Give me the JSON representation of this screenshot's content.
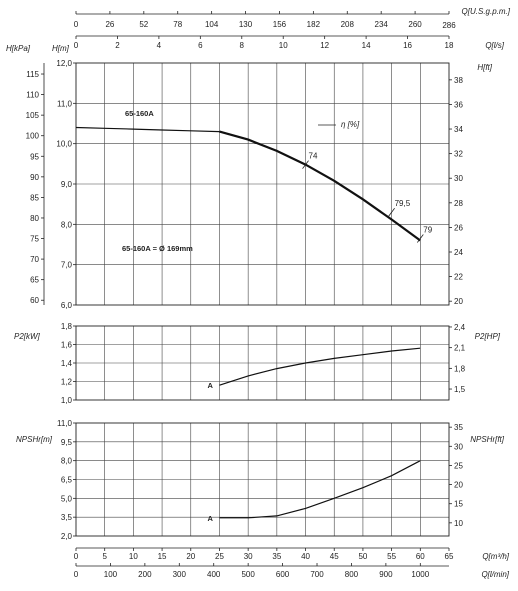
{
  "chart_data": {
    "type": "line",
    "model": "65-160A",
    "impeller_label": "65-160A = Ø 169mm",
    "axes": {
      "q_usgpm": {
        "label": "Q[U.S.g.p.m.]",
        "range": [
          0,
          286
        ],
        "ticks": [
          "0",
          "26",
          "52",
          "78",
          "104",
          "130",
          "156",
          "182",
          "208",
          "234",
          "260",
          "286"
        ]
      },
      "q_ls": {
        "label": "Q[l/s]",
        "range": [
          0,
          18
        ],
        "ticks": [
          "0",
          "2",
          "4",
          "6",
          "8",
          "10",
          "12",
          "14",
          "16",
          "18"
        ]
      },
      "q_m3h": {
        "label": "Q[m³/h]",
        "range": [
          0,
          65
        ],
        "ticks": [
          "0",
          "5",
          "10",
          "15",
          "20",
          "25",
          "30",
          "35",
          "40",
          "45",
          "50",
          "55",
          "60",
          "65"
        ]
      },
      "q_lmin": {
        "label": "Q[l/min]",
        "range": [
          0,
          1083.33
        ],
        "ticks": [
          "0",
          "100",
          "200",
          "300",
          "400",
          "500",
          "600",
          "700",
          "800",
          "900",
          "1000"
        ]
      }
    },
    "panels": [
      {
        "id": "head",
        "left_axis": {
          "label": "H[m]",
          "range": [
            6.0,
            12.0
          ],
          "ticks": [
            "6,0",
            "7,0",
            "8,0",
            "9,0",
            "10,0",
            "11,0",
            "12,0"
          ]
        },
        "outer_left_axis": {
          "label": "H[kPa]",
          "range": [
            58.84,
            117.68
          ],
          "ticks": [
            "60",
            "65",
            "70",
            "75",
            "80",
            "85",
            "90",
            "95",
            "100",
            "105",
            "110",
            "115"
          ]
        },
        "right_axis": {
          "label": "H[ft]",
          "range": [
            19.69,
            39.37
          ],
          "ticks": [
            "20",
            "22",
            "24",
            "26",
            "28",
            "30",
            "32",
            "34",
            "36",
            "38"
          ]
        },
        "efficiency_label": "η [%]",
        "efficiency_marks": [
          {
            "label": "74",
            "q_m3h": 40,
            "h": 9.48
          },
          {
            "label": "79,5",
            "q_m3h": 55,
            "h": 8.3
          },
          {
            "label": "79",
            "q_m3h": 60,
            "h": 7.65
          }
        ],
        "series": [
          {
            "q_m3h": [
              0,
              5,
              10,
              15,
              20,
              25
            ],
            "h": [
              10.4,
              10.38,
              10.36,
              10.34,
              10.32,
              10.3
            ],
            "style": "thin"
          },
          {
            "q_m3h": [
              25,
              30,
              35,
              40,
              45,
              50,
              55,
              60
            ],
            "h": [
              10.3,
              10.1,
              9.82,
              9.48,
              9.08,
              8.62,
              8.12,
              7.6
            ],
            "style": "thick"
          }
        ]
      },
      {
        "id": "power",
        "left_axis": {
          "label": "P2[kW]",
          "range": [
            1.0,
            1.8
          ],
          "ticks": [
            "1,0",
            "1,2",
            "1,4",
            "1,6",
            "1,8"
          ]
        },
        "right_axis": {
          "label": "P2[HP]",
          "range": [
            1.341,
            2.414
          ],
          "ticks": [
            "1,5",
            "1,8",
            "2,1",
            "2,4"
          ]
        },
        "curve_label": "A",
        "series": [
          {
            "q_m3h": [
              25,
              30,
              35,
              40,
              45,
              50,
              55,
              60
            ],
            "p2": [
              1.16,
              1.26,
              1.34,
              1.4,
              1.45,
              1.49,
              1.53,
              1.56
            ]
          }
        ]
      },
      {
        "id": "npsh",
        "left_axis": {
          "label": "NPSHr[m]",
          "range": [
            2.0,
            11.0
          ],
          "ticks": [
            "2,0",
            "3,5",
            "5,0",
            "6,5",
            "8,0",
            "9,5",
            "11,0"
          ]
        },
        "right_axis": {
          "label": "NPSHr[ft]",
          "range": [
            6.56,
            36.09
          ],
          "ticks": [
            "10",
            "15",
            "20",
            "25",
            "30",
            "35"
          ]
        },
        "curve_label": "A",
        "series": [
          {
            "q_m3h": [
              25,
              30,
              35,
              40,
              45,
              50,
              55,
              60
            ],
            "npsh": [
              3.45,
              3.45,
              3.6,
              4.2,
              5.0,
              5.85,
              6.8,
              8.0
            ]
          }
        ]
      }
    ]
  }
}
